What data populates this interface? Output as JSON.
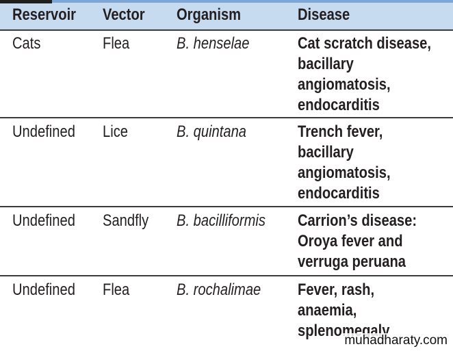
{
  "table": {
    "header": [
      "Reservoir",
      "Vector",
      "Organism",
      "Disease"
    ],
    "rows": [
      [
        "Cats",
        "Flea",
        "B. henselae",
        [
          "Cat scratch disease,",
          "bacillary",
          "angiomatosis,",
          "endocarditis"
        ]
      ],
      [
        "Undefined",
        "Lice",
        "B. quintana",
        [
          "Trench fever,",
          "bacillary",
          "angiomatosis,",
          "endocarditis"
        ]
      ],
      [
        "Undefined",
        "Sandfly",
        "B. bacilliformis",
        [
          "Carrion’s disease:",
          "Oroya fever and",
          "verruga peruana"
        ]
      ],
      [
        "Undefined",
        "Flea",
        "B. rochalimae",
        [
          "Fever, rash,",
          "anaemia,",
          "splenomegaly"
        ]
      ]
    ]
  },
  "watermark": "muhadharaty.com"
}
